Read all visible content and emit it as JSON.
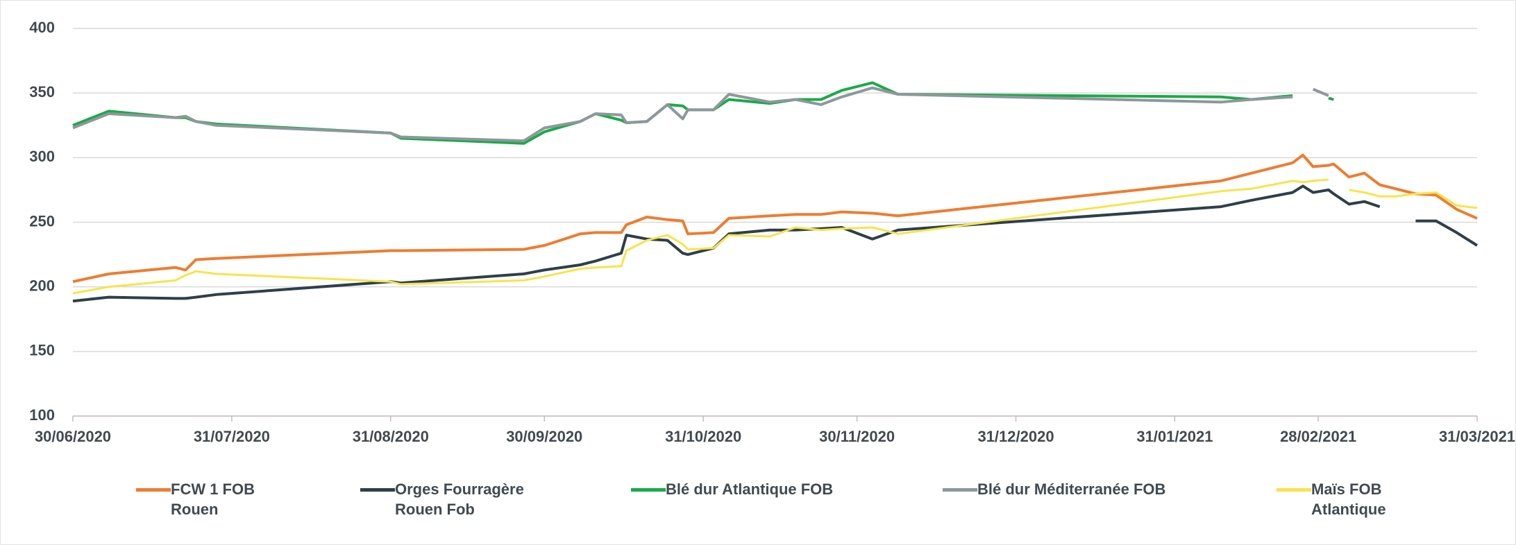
{
  "chart_data": {
    "type": "line",
    "x": [
      "2020-06-30",
      "2020-07-07",
      "2020-07-20",
      "2020-07-22",
      "2020-07-24",
      "2020-07-28",
      "2020-08-31",
      "2020-09-02",
      "2020-09-26",
      "2020-09-30",
      "2020-10-07",
      "2020-10-10",
      "2020-10-15",
      "2020-10-16",
      "2020-10-20",
      "2020-10-24",
      "2020-10-27",
      "2020-10-28",
      "2020-11-02",
      "2020-11-05",
      "2020-11-13",
      "2020-11-18",
      "2020-11-23",
      "2020-11-27",
      "2020-12-03",
      "2020-12-08",
      "2021-02-09",
      "2021-02-15",
      "2021-02-23",
      "2021-02-25",
      "2021-02-27",
      "2021-03-02",
      "2021-03-03",
      "2021-03-06",
      "2021-03-09",
      "2021-03-12",
      "2021-03-15",
      "2021-03-19",
      "2021-03-23",
      "2021-03-27",
      "2021-03-31"
    ],
    "series": [
      {
        "name": "FCW 1 FOB Rouen",
        "color": "#ed7d31",
        "width": 4,
        "values": [
          204,
          210,
          215,
          213,
          221,
          222,
          228,
          228,
          229,
          232,
          241,
          242,
          242,
          248,
          254,
          252,
          251,
          241,
          242,
          253,
          255,
          256,
          256,
          258,
          257,
          255,
          282,
          288,
          296,
          302,
          293,
          294,
          295,
          285,
          288,
          279,
          276,
          272,
          271,
          260,
          253
        ]
      },
      {
        "name": "Orges Fourragère Rouen Fob",
        "color": "#2e3f4a",
        "width": 4,
        "values": [
          189,
          192,
          191,
          191,
          192,
          194,
          204,
          203,
          210,
          213,
          217,
          220,
          226,
          240,
          237,
          236,
          226,
          225,
          230,
          241,
          244,
          244,
          245,
          246,
          237,
          244,
          262,
          267,
          273,
          278,
          273,
          275,
          272,
          264,
          266,
          262,
          null,
          251,
          251,
          242,
          232
        ]
      },
      {
        "name": "Blé dur Atlantique FOB",
        "color": "#1aab48",
        "width": 4,
        "values": [
          325,
          336,
          331,
          331,
          328,
          326,
          319,
          315,
          311,
          320,
          328,
          334,
          329,
          327,
          328,
          341,
          340,
          337,
          337,
          345,
          342,
          345,
          345,
          352,
          358,
          349,
          347,
          345,
          348,
          null,
          null,
          346,
          345,
          null,
          null,
          null,
          null,
          null,
          null,
          null,
          null
        ]
      },
      {
        "name": "Blé dur Méditerranée FOB",
        "color": "#8e979c",
        "width": 4,
        "values": [
          323,
          334,
          331,
          332,
          328,
          325,
          319,
          316,
          313,
          323,
          328,
          334,
          333,
          327,
          328,
          341,
          330,
          337,
          337,
          349,
          343,
          345,
          341,
          347,
          354,
          349,
          343,
          345,
          347,
          null,
          353,
          348,
          null,
          null,
          null,
          null,
          null,
          null,
          null,
          null,
          null
        ]
      },
      {
        "name": "Maïs FOB Atlantique",
        "color": "#f7e44a",
        "width": 3,
        "values": [
          195,
          200,
          205,
          209,
          212,
          210,
          204,
          202,
          205,
          208,
          214,
          215,
          216,
          228,
          236,
          240,
          233,
          229,
          230,
          240,
          239,
          246,
          244,
          245,
          246,
          241,
          274,
          276,
          282,
          281,
          282,
          283,
          null,
          275,
          273,
          270,
          270,
          272,
          273,
          263,
          261
        ]
      }
    ],
    "xlim": [
      "2020-06-30",
      "2021-03-31"
    ],
    "xticks": [
      {
        "value": "2020-06-30",
        "label": "30/06/2020"
      },
      {
        "value": "2020-07-31",
        "label": "31/07/2020"
      },
      {
        "value": "2020-08-31",
        "label": "31/08/2020"
      },
      {
        "value": "2020-09-30",
        "label": "30/09/2020"
      },
      {
        "value": "2020-10-31",
        "label": "31/10/2020"
      },
      {
        "value": "2020-11-30",
        "label": "30/11/2020"
      },
      {
        "value": "2020-12-31",
        "label": "31/12/2020"
      },
      {
        "value": "2021-01-31",
        "label": "31/01/2021"
      },
      {
        "value": "2021-02-28",
        "label": "28/02/2021"
      },
      {
        "value": "2021-03-31",
        "label": "31/03/2021"
      }
    ],
    "ylim": [
      100,
      400
    ],
    "yticks": [
      100,
      150,
      200,
      250,
      300,
      350,
      400
    ],
    "grid": true,
    "legend": "bottom"
  }
}
